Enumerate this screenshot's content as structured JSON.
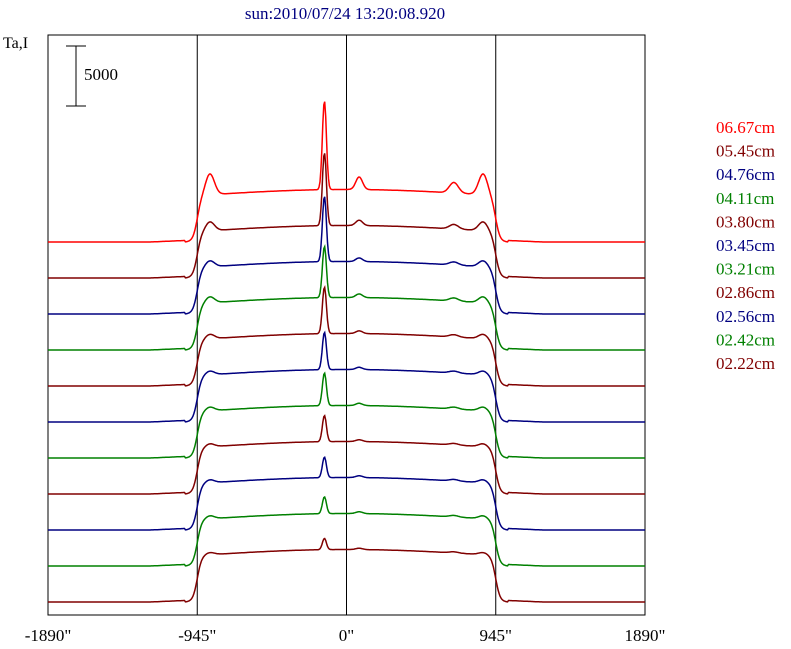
{
  "chart_data": {
    "type": "line",
    "title": "sun:2010/07/24 13:20:08.920",
    "title_color": "#000080",
    "ylabel": "Ta,I",
    "scale_bar_label": "5000",
    "scale_bar_value": 5000,
    "xlim": [
      -1890,
      1890
    ],
    "xticks": [
      {
        "value": -1890,
        "label": "-1890\""
      },
      {
        "value": -945,
        "label": "-945\""
      },
      {
        "value": 0,
        "label": "0\""
      },
      {
        "value": 945,
        "label": "945\""
      },
      {
        "value": 1890,
        "label": "1890\""
      }
    ],
    "vertical_lines": [
      -945,
      0,
      945
    ],
    "grid": false,
    "legend_position": "right",
    "series": [
      {
        "name": "06.67cm",
        "color": "#ff0000",
        "baseline": 0,
        "peak": 0.95,
        "shoulder": 0.28,
        "dip": 0.0
      },
      {
        "name": "05.45cm",
        "color": "#800000",
        "baseline": -1,
        "peak": 0.78,
        "shoulder": 0.12,
        "dip": 0.04
      },
      {
        "name": "04.76cm",
        "color": "#000080",
        "baseline": -2,
        "peak": 0.7,
        "shoulder": 0.08,
        "dip": 0.06
      },
      {
        "name": "04.11cm",
        "color": "#008000",
        "baseline": -3,
        "peak": 0.55,
        "shoulder": 0.08,
        "dip": 0.05
      },
      {
        "name": "03.80cm",
        "color": "#800000",
        "baseline": -4,
        "peak": 0.5,
        "shoulder": 0.06,
        "dip": 0.04
      },
      {
        "name": "03.45cm",
        "color": "#000080",
        "baseline": -5,
        "peak": 0.4,
        "shoulder": 0.05,
        "dip": 0.03
      },
      {
        "name": "03.21cm",
        "color": "#008000",
        "baseline": -6,
        "peak": 0.35,
        "shoulder": 0.05,
        "dip": 0.02
      },
      {
        "name": "02.86cm",
        "color": "#800000",
        "baseline": -7,
        "peak": 0.28,
        "shoulder": 0.04,
        "dip": 0.02
      },
      {
        "name": "02.56cm",
        "color": "#000080",
        "baseline": -8,
        "peak": 0.22,
        "shoulder": 0.04,
        "dip": 0.01
      },
      {
        "name": "02.42cm",
        "color": "#008000",
        "baseline": -9,
        "peak": 0.18,
        "shoulder": 0.04,
        "dip": 0.01
      },
      {
        "name": "02.22cm",
        "color": "#800000",
        "baseline": -10,
        "peak": 0.12,
        "shoulder": 0.03,
        "dip": 0.0
      }
    ]
  }
}
